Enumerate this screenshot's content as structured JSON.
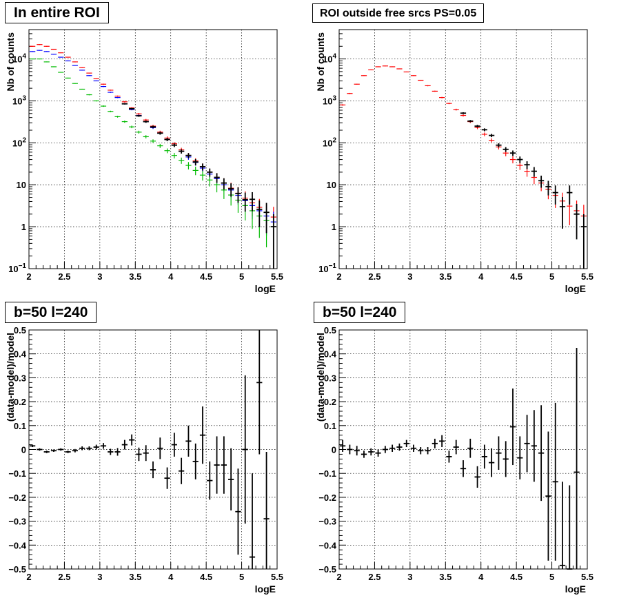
{
  "chart_data": [
    {
      "type": "line",
      "title": "In entire ROI",
      "xlabel": "logE",
      "ylabel": "Nb of counts",
      "xlim": [
        2,
        5.5
      ],
      "ylim": [
        0.1,
        50000
      ],
      "yscale": "log",
      "grid": true,
      "x_ticks": [
        "2",
        "2.5",
        "3",
        "3.5",
        "4",
        "4.5",
        "5",
        "5.5"
      ],
      "y_ticks": [
        "10^-1",
        "1",
        "10",
        "10^2",
        "10^3",
        "10^4"
      ],
      "x": [
        2.05,
        2.15,
        2.25,
        2.35,
        2.45,
        2.55,
        2.65,
        2.75,
        2.85,
        2.95,
        3.05,
        3.15,
        3.25,
        3.35,
        3.45,
        3.55,
        3.65,
        3.75,
        3.85,
        3.95,
        4.05,
        4.15,
        4.25,
        4.35,
        4.45,
        4.55,
        4.65,
        4.75,
        4.85,
        4.95,
        5.05,
        5.15,
        5.25,
        5.35,
        5.45
      ],
      "series": [
        {
          "color": "#ff0000",
          "values": [
            20000,
            22000,
            20000,
            17000,
            14000,
            11000,
            8500,
            6300,
            4600,
            3400,
            2500,
            1800,
            1300,
            950,
            680,
            490,
            350,
            250,
            180,
            130,
            95,
            68,
            50,
            37,
            27,
            20,
            15,
            11,
            8.3,
            6.3,
            4.8,
            3.7,
            2.9,
            2.2,
            1.7
          ],
          "yerr_rel": [
            0.02,
            0.02,
            0.02,
            0.02,
            0.02,
            0.02,
            0.02,
            0.02,
            0.02,
            0.02,
            0.03,
            0.03,
            0.03,
            0.04,
            0.04,
            0.05,
            0.06,
            0.07,
            0.08,
            0.09,
            0.1,
            0.12,
            0.14,
            0.16,
            0.19,
            0.22,
            0.26,
            0.3,
            0.35,
            0.4,
            0.46,
            0.52,
            0.59,
            0.66,
            0.75
          ]
        },
        {
          "color": "#0000ff",
          "values": [
            15000,
            16000,
            15000,
            13000,
            11000,
            9000,
            7000,
            5400,
            4000,
            3000,
            2200,
            1600,
            1200,
            850,
            620,
            450,
            320,
            230,
            170,
            120,
            88,
            63,
            46,
            34,
            25,
            18,
            14,
            10,
            7.5,
            5.6,
            4.2,
            3.2,
            2.4,
            1.8,
            1.3
          ],
          "yerr_rel": [
            0.02,
            0.02,
            0.02,
            0.02,
            0.02,
            0.02,
            0.02,
            0.02,
            0.02,
            0.02,
            0.03,
            0.03,
            0.03,
            0.04,
            0.04,
            0.05,
            0.06,
            0.07,
            0.08,
            0.09,
            0.1,
            0.12,
            0.14,
            0.16,
            0.19,
            0.22,
            0.26,
            0.3,
            0.35,
            0.4,
            0.46,
            0.52,
            0.59,
            0.66,
            0.75
          ]
        },
        {
          "color": "#00bb00",
          "values": [
            10000,
            10000,
            8500,
            6500,
            4800,
            3500,
            2600,
            1900,
            1400,
            1000,
            750,
            560,
            420,
            320,
            240,
            180,
            140,
            110,
            85,
            65,
            50,
            38,
            29,
            22,
            17,
            13,
            10,
            7.5,
            5.7,
            4.3,
            3.2,
            2.4,
            1.8,
            1.4,
            1.0
          ],
          "yerr_rel": [
            0.02,
            0.02,
            0.02,
            0.02,
            0.02,
            0.02,
            0.02,
            0.02,
            0.03,
            0.03,
            0.04,
            0.04,
            0.05,
            0.06,
            0.07,
            0.08,
            0.09,
            0.1,
            0.11,
            0.13,
            0.15,
            0.17,
            0.2,
            0.23,
            0.26,
            0.3,
            0.34,
            0.39,
            0.44,
            0.5,
            0.56,
            0.63,
            0.7,
            0.77,
            0.85
          ]
        },
        {
          "color": "#000000",
          "values": [
            null,
            null,
            null,
            null,
            null,
            null,
            null,
            null,
            null,
            null,
            null,
            null,
            null,
            850,
            650,
            440,
            320,
            240,
            170,
            120,
            88,
            63,
            50,
            35,
            27,
            20,
            15,
            11,
            8,
            6.2,
            4.4,
            4.5,
            2.6,
            2.2,
            1
          ],
          "yerr_rel": [
            0,
            0,
            0,
            0,
            0,
            0,
            0,
            0,
            0,
            0,
            0,
            0,
            0,
            0.03,
            0.04,
            0.05,
            0.06,
            0.07,
            0.08,
            0.09,
            0.1,
            0.12,
            0.14,
            0.17,
            0.19,
            0.22,
            0.26,
            0.3,
            0.35,
            0.4,
            0.48,
            0.48,
            0.62,
            0.68,
            0.98
          ]
        }
      ]
    },
    {
      "type": "line",
      "title": "ROI outside free srcs PS=0.05",
      "xlabel": "logE",
      "ylabel": "Nb of counts",
      "xlim": [
        2,
        5.5
      ],
      "ylim": [
        0.1,
        50000
      ],
      "yscale": "log",
      "grid": true,
      "x_ticks": [
        "2",
        "2.5",
        "3",
        "3.5",
        "4",
        "4.5",
        "5",
        "5.5"
      ],
      "y_ticks": [
        "10^-1",
        "1",
        "10",
        "10^2",
        "10^3",
        "10^4"
      ],
      "x": [
        2.05,
        2.15,
        2.25,
        2.35,
        2.45,
        2.55,
        2.65,
        2.75,
        2.85,
        2.95,
        3.05,
        3.15,
        3.25,
        3.35,
        3.45,
        3.55,
        3.65,
        3.75,
        3.85,
        3.95,
        4.05,
        4.15,
        4.25,
        4.35,
        4.45,
        4.55,
        4.65,
        4.75,
        4.85,
        4.95,
        5.05,
        5.15,
        5.25,
        5.35,
        5.45
      ],
      "series": [
        {
          "color": "#ff0000",
          "values": [
            800,
            1500,
            2500,
            4000,
            5500,
            6500,
            6800,
            6500,
            5800,
            4900,
            4000,
            3100,
            2300,
            1700,
            1200,
            870,
            620,
            450,
            320,
            230,
            160,
            115,
            80,
            57,
            40,
            29,
            21,
            15,
            11,
            7.8,
            5.6,
            4.1,
            3.1,
            2.4,
            1.8
          ],
          "yerr_rel": [
            0.04,
            0.03,
            0.02,
            0.02,
            0.02,
            0.02,
            0.02,
            0.02,
            0.02,
            0.02,
            0.02,
            0.02,
            0.03,
            0.03,
            0.04,
            0.04,
            0.05,
            0.06,
            0.07,
            0.08,
            0.1,
            0.11,
            0.13,
            0.16,
            0.19,
            0.22,
            0.26,
            0.31,
            0.36,
            0.42,
            0.5,
            0.58,
            0.65,
            0.75,
            0.85
          ]
        },
        {
          "color": "#000000",
          "values": [
            null,
            null,
            null,
            null,
            null,
            null,
            null,
            null,
            null,
            null,
            null,
            null,
            null,
            null,
            null,
            null,
            null,
            510,
            330,
            250,
            205,
            150,
            88,
            70,
            57,
            40,
            30,
            21,
            12.5,
            9,
            6.5,
            3,
            6.5,
            2,
            1
          ],
          "yerr_rel": [
            0,
            0,
            0,
            0,
            0,
            0,
            0,
            0,
            0,
            0,
            0,
            0,
            0,
            0,
            0,
            0,
            0,
            0.05,
            0.06,
            0.07,
            0.08,
            0.09,
            0.11,
            0.13,
            0.15,
            0.18,
            0.21,
            0.26,
            0.32,
            0.38,
            0.48,
            0.7,
            0.48,
            0.75,
            0.98
          ]
        }
      ]
    },
    {
      "type": "scatter",
      "title": "b=50 l=240",
      "xlabel": "logE",
      "ylabel": "(data-model)/model",
      "xlim": [
        2,
        5.5
      ],
      "ylim": [
        -0.5,
        0.5
      ],
      "grid": true,
      "x_ticks": [
        "2",
        "2.5",
        "3",
        "3.5",
        "4",
        "4.5",
        "5",
        "5.5"
      ],
      "y_ticks": [
        "-0.5",
        "-0.4",
        "-0.3",
        "-0.2",
        "-0.1",
        "0",
        "0.1",
        "0.2",
        "0.3",
        "0.4",
        "0.5"
      ],
      "x": [
        2.05,
        2.15,
        2.25,
        2.35,
        2.45,
        2.55,
        2.65,
        2.75,
        2.85,
        2.95,
        3.05,
        3.15,
        3.25,
        3.35,
        3.45,
        3.55,
        3.65,
        3.75,
        3.85,
        3.95,
        4.05,
        4.15,
        4.25,
        4.35,
        4.45,
        4.55,
        4.65,
        4.75,
        4.85,
        4.95,
        5.05,
        5.15,
        5.25,
        5.35
      ],
      "y": [
        0.015,
        0.0,
        -0.01,
        -0.005,
        0.0,
        -0.01,
        -0.005,
        0.005,
        0.005,
        0.01,
        0.015,
        -0.01,
        -0.01,
        0.02,
        0.04,
        -0.02,
        -0.015,
        -0.085,
        0.005,
        -0.12,
        0.02,
        -0.09,
        0.035,
        -0.05,
        0.06,
        -0.13,
        -0.065,
        -0.065,
        -0.125,
        -0.26,
        0.0,
        -0.45,
        0.28,
        -0.29
      ],
      "yerr": [
        0.005,
        0.005,
        0.005,
        0.005,
        0.005,
        0.005,
        0.007,
        0.008,
        0.008,
        0.01,
        0.012,
        0.013,
        0.016,
        0.02,
        0.023,
        0.028,
        0.033,
        0.035,
        0.045,
        0.045,
        0.05,
        0.055,
        0.065,
        0.075,
        0.12,
        0.08,
        0.12,
        0.12,
        0.13,
        0.18,
        0.31,
        0.35,
        0.3,
        0.28
      ]
    },
    {
      "type": "scatter",
      "title": "b=50 l=240",
      "xlabel": "logE",
      "ylabel": "(data-model)/model",
      "xlim": [
        2,
        5.5
      ],
      "ylim": [
        -0.5,
        0.5
      ],
      "grid": true,
      "x_ticks": [
        "2",
        "2.5",
        "3",
        "3.5",
        "4",
        "4.5",
        "5",
        "5.5"
      ],
      "y_ticks": [
        "-0.5",
        "-0.4",
        "-0.3",
        "-0.2",
        "-0.1",
        "0",
        "0.1",
        "0.2",
        "0.3",
        "0.4",
        "0.5"
      ],
      "x": [
        2.05,
        2.15,
        2.25,
        2.35,
        2.45,
        2.55,
        2.65,
        2.75,
        2.85,
        2.95,
        3.05,
        3.15,
        3.25,
        3.35,
        3.45,
        3.55,
        3.65,
        3.75,
        3.85,
        3.95,
        4.05,
        4.15,
        4.25,
        4.35,
        4.45,
        4.55,
        4.65,
        4.75,
        4.85,
        4.95,
        5.05,
        5.15,
        5.25,
        5.35
      ],
      "y": [
        0.015,
        0.0,
        -0.005,
        -0.02,
        -0.01,
        -0.015,
        0.0,
        0.005,
        0.01,
        0.025,
        0.005,
        -0.005,
        -0.005,
        0.025,
        0.035,
        -0.03,
        0.01,
        -0.08,
        0.005,
        -0.115,
        -0.03,
        -0.055,
        -0.015,
        -0.04,
        0.095,
        -0.035,
        0.025,
        0.015,
        -0.015,
        -0.195,
        -0.135,
        -0.485,
        -0.5,
        -0.095
      ],
      "yerr": [
        0.025,
        0.02,
        0.02,
        0.015,
        0.015,
        0.015,
        0.015,
        0.015,
        0.015,
        0.015,
        0.015,
        0.015,
        0.015,
        0.02,
        0.025,
        0.025,
        0.03,
        0.035,
        0.04,
        0.045,
        0.05,
        0.06,
        0.07,
        0.075,
        0.16,
        0.09,
        0.12,
        0.15,
        0.2,
        0.27,
        0.33,
        0.35,
        0.35,
        0.52
      ]
    }
  ]
}
